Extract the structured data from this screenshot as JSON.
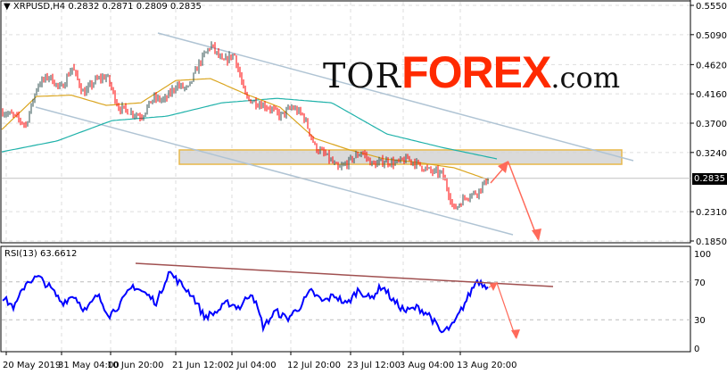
{
  "chart_data": {
    "type": "candlestick",
    "symbol": "XRPUSD,H4",
    "ohlc": {
      "open": "0.2832",
      "high": "0.2871",
      "low": "0.2809",
      "close": "0.2835"
    },
    "current_price": "0.2835",
    "ylim": [
      0.185,
      0.555
    ],
    "y_ticks": [
      "0.5550",
      "0.5090",
      "0.4620",
      "0.4160",
      "0.3700",
      "0.3240",
      "0.2310",
      "0.1850"
    ],
    "x_ticks": [
      "20 May 2019",
      "31 May 04:00",
      "10 Jun 20:00",
      "21 Jun 12:00",
      "2 Jul 04:00",
      "12 Jul 20:00",
      "23 Jul 12:00",
      "3 Aug 04:00",
      "13 Aug 20:00"
    ],
    "close_samples": [
      0.388,
      0.381,
      0.367,
      0.43,
      0.444,
      0.423,
      0.458,
      0.416,
      0.437,
      0.444,
      0.395,
      0.388,
      0.381,
      0.409,
      0.406,
      0.43,
      0.423,
      0.465,
      0.493,
      0.465,
      0.479,
      0.409,
      0.402,
      0.395,
      0.381,
      0.395,
      0.381,
      0.332,
      0.318,
      0.297,
      0.311,
      0.325,
      0.304,
      0.311,
      0.307,
      0.314,
      0.304,
      0.294,
      0.29,
      0.234,
      0.255,
      0.262,
      0.2835
    ],
    "ma_fast_samples": [
      0.36,
      0.412,
      0.414,
      0.398,
      0.402,
      0.437,
      0.44,
      0.416,
      0.395,
      0.346,
      0.328,
      0.314,
      0.308,
      0.3,
      0.281
    ],
    "ma_slow_samples": [
      0.325,
      0.342,
      0.374,
      0.381,
      0.402,
      0.409,
      0.402,
      0.353,
      0.332,
      0.314
    ],
    "bull_color": "#2f4f4f",
    "bear_color": "#ff0000",
    "ma_fast_color": "#daa520",
    "ma_slow_color": "#20b2aa",
    "resistance_zone": [
      0.3055,
      0.328
    ],
    "rsi": {
      "label": "RSI(13) 63.6612",
      "levels": [
        "100",
        "70",
        "30",
        "0"
      ],
      "color": "#0000ff",
      "samples": [
        53,
        43,
        70,
        75,
        64,
        48,
        56,
        39,
        56,
        35,
        48,
        66,
        58,
        48,
        81,
        68,
        56,
        33,
        38,
        48,
        43,
        60,
        22,
        39,
        31,
        43,
        60,
        49,
        56,
        46,
        62,
        52,
        66,
        49,
        39,
        43,
        35,
        16,
        24,
        48,
        72,
        64
      ]
    }
  },
  "branding": {
    "tor": "TOR",
    "forex": "FOREX",
    "com": ".com"
  }
}
